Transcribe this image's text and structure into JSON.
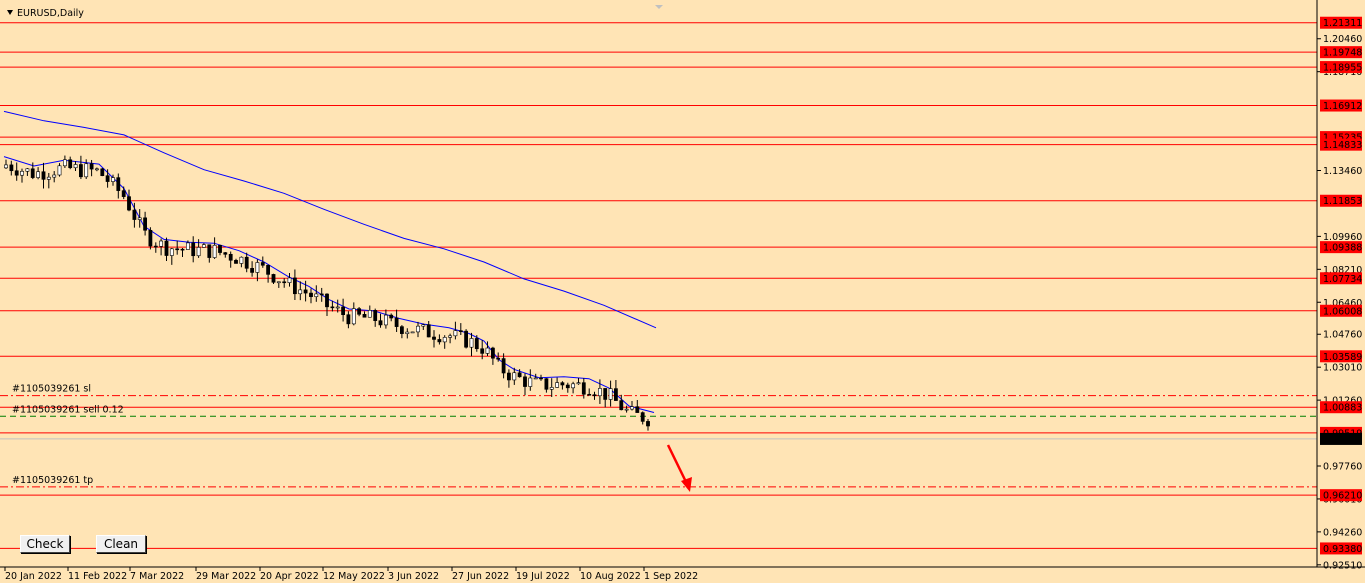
{
  "chart_data": {
    "type": "candlestick",
    "title": "EURUSD,Daily",
    "ylim": [
      0.925,
      1.222
    ],
    "x_tick_labels": [
      "20 Jan 2022",
      "11 Feb 2022",
      "7 Mar 2022",
      "29 Mar 2022",
      "20 Apr 2022",
      "12 May 2022",
      "3 Jun 2022",
      "27 Jun 2022",
      "19 Jul 2022",
      "10 Aug 2022",
      "1 Sep 2022"
    ],
    "y_tick_labels": [
      "1.20460",
      "1.18710",
      "1.13460",
      "1.09960",
      "1.08210",
      "1.06460",
      "1.04760",
      "1.03010",
      "1.01260",
      "0.97760",
      "0.96010",
      "0.94260",
      "0.92510"
    ],
    "horizontal_levels": [
      "1.21311",
      "1.19748",
      "1.18955",
      "1.16912",
      "1.15235",
      "1.14833",
      "1.11853",
      "1.09388",
      "1.07734",
      "1.06008",
      "1.03589",
      "1.00883",
      "0.99519",
      "0.96210",
      "0.93380"
    ],
    "current_price": "0.99198",
    "order_lines": [
      {
        "label": "#1105039261 sl",
        "price": 1.015
      },
      {
        "label": "#1105039261 sell 0.12",
        "price": 1.004
      },
      {
        "label": "#1105039261 tp",
        "price": 0.9665
      }
    ],
    "moving_averages": [
      {
        "color": "#0000ff",
        "period_hint": "long",
        "points": [
          [
            0,
            1.166
          ],
          [
            40,
            1.161
          ],
          [
            80,
            1.1575
          ],
          [
            120,
            1.1535
          ],
          [
            160,
            1.144
          ],
          [
            200,
            1.135
          ],
          [
            240,
            1.129
          ],
          [
            280,
            1.1225
          ],
          [
            320,
            1.114
          ],
          [
            360,
            1.106
          ],
          [
            400,
            1.0985
          ],
          [
            440,
            1.093
          ],
          [
            480,
            1.086
          ],
          [
            520,
            1.077
          ],
          [
            560,
            1.0705
          ],
          [
            600,
            1.063
          ],
          [
            652,
            1.051
          ]
        ]
      },
      {
        "color": "#0000ff",
        "period_hint": "short",
        "points": [
          [
            0,
            1.142
          ],
          [
            30,
            1.137
          ],
          [
            60,
            1.14
          ],
          [
            95,
            1.138
          ],
          [
            120,
            1.125
          ],
          [
            140,
            1.105
          ],
          [
            160,
            1.098
          ],
          [
            185,
            1.0965
          ],
          [
            210,
            1.096
          ],
          [
            235,
            1.092
          ],
          [
            260,
            1.086
          ],
          [
            285,
            1.078
          ],
          [
            305,
            1.073
          ],
          [
            325,
            1.066
          ],
          [
            345,
            1.061
          ],
          [
            370,
            1.06
          ],
          [
            395,
            1.056
          ],
          [
            420,
            1.053
          ],
          [
            445,
            1.051
          ],
          [
            465,
            1.048
          ],
          [
            480,
            1.044
          ],
          [
            495,
            1.034
          ],
          [
            510,
            1.029
          ],
          [
            535,
            1.0245
          ],
          [
            560,
            1.025
          ],
          [
            585,
            1.024
          ],
          [
            605,
            1.019
          ],
          [
            625,
            1.0095
          ],
          [
            650,
            1.006
          ]
        ]
      }
    ],
    "series_colors": {
      "level": "#ff0000",
      "ma": "#0000ff",
      "candle": "#000000",
      "label_bg": "#ff0000",
      "label_text": "#ffffff",
      "price_bg": "#000000",
      "order_line": "#008000",
      "arrow": "#ff0000"
    },
    "grid": false
  },
  "buttons": {
    "check_label": "Check",
    "clean_label": "Clean"
  }
}
